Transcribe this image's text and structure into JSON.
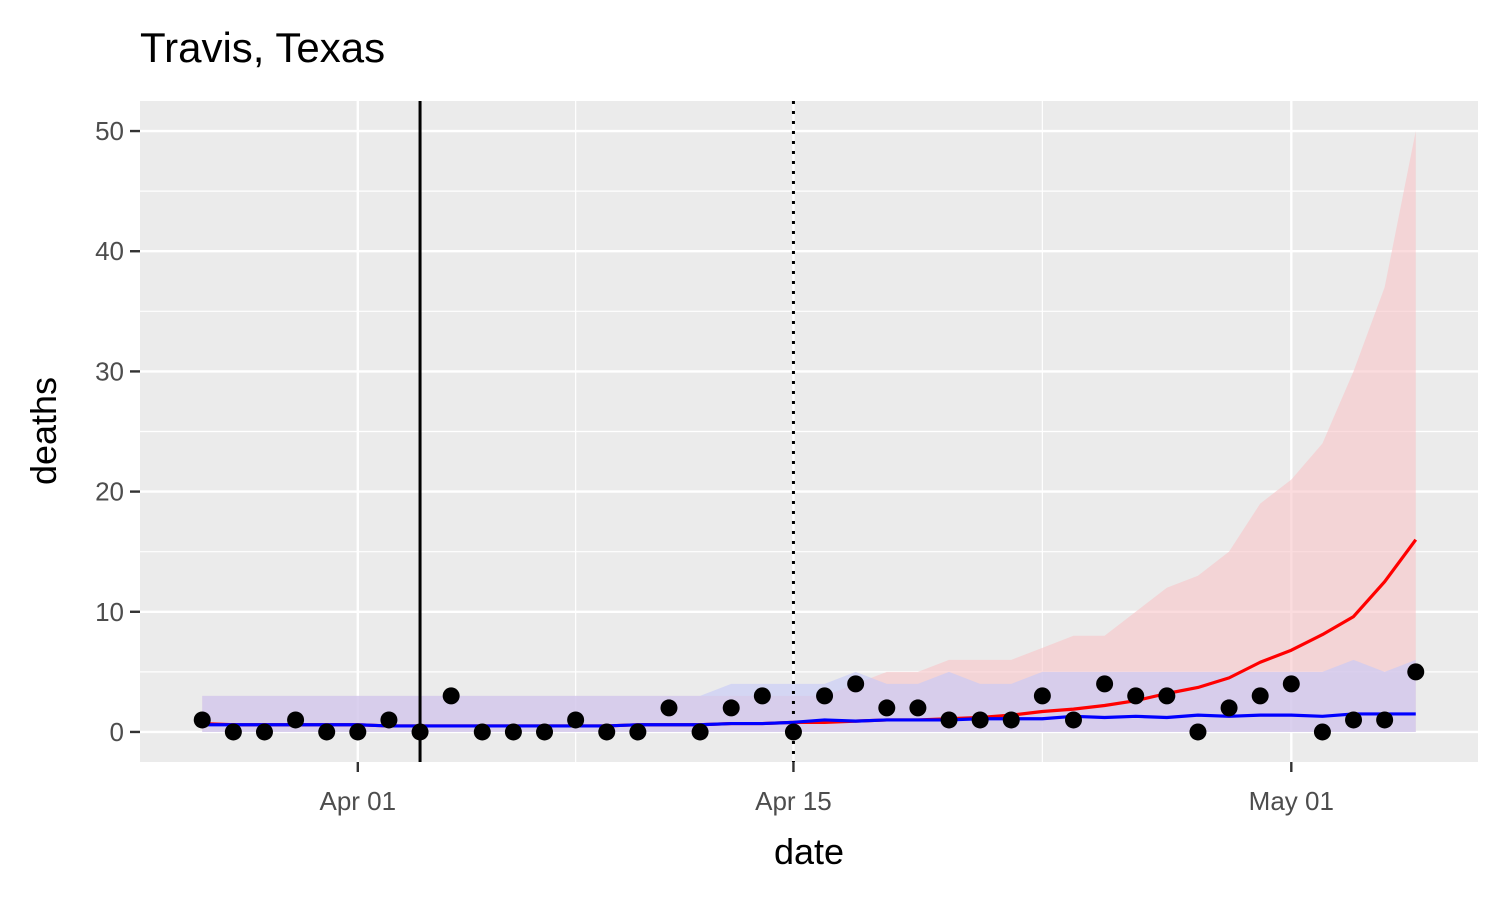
{
  "chart_data": {
    "type": "line",
    "title": "Travis, Texas",
    "xlabel": "date",
    "ylabel": "deaths",
    "x_start": "2020-03-27",
    "xlim": [
      "2020-03-25",
      "2020-05-07"
    ],
    "ylim": [
      -2.5,
      52.5
    ],
    "y_ticks": [
      0,
      10,
      20,
      30,
      40,
      50
    ],
    "x_ticks": [
      {
        "date": "2020-04-01",
        "label": "Apr 01"
      },
      {
        "date": "2020-04-15",
        "label": "Apr 15"
      },
      {
        "date": "2020-05-01",
        "label": "May 01"
      }
    ],
    "x_minor_ticks": [
      "2020-04-08",
      "2020-04-23"
    ],
    "grid": true,
    "vlines": [
      {
        "date": "2020-04-03",
        "style": "solid"
      },
      {
        "date": "2020-04-15",
        "style": "dotted"
      }
    ],
    "observed": [
      1,
      0,
      0,
      1,
      0,
      0,
      1,
      0,
      3,
      0,
      0,
      0,
      1,
      0,
      0,
      2,
      0,
      2,
      3,
      0,
      3,
      4,
      2,
      2,
      1,
      1,
      1,
      3,
      1,
      4,
      3,
      3,
      0,
      2,
      3,
      4,
      0,
      1,
      1,
      5
    ],
    "series": [
      {
        "color": "#ff0000",
        "band_color": "#f8c4c8",
        "values": [
          0.7,
          0.6,
          0.6,
          0.6,
          0.6,
          0.6,
          0.5,
          0.5,
          0.5,
          0.5,
          0.5,
          0.5,
          0.5,
          0.5,
          0.6,
          0.6,
          0.6,
          0.7,
          0.7,
          0.8,
          0.8,
          0.9,
          1.0,
          1.0,
          1.1,
          1.2,
          1.4,
          1.7,
          1.9,
          2.2,
          2.6,
          3.2,
          3.7,
          4.5,
          5.8,
          6.8,
          8.1,
          9.6,
          12.5,
          16.0
        ],
        "lower": [
          0,
          0,
          0,
          0,
          0,
          0,
          0,
          0,
          0,
          0,
          0,
          0,
          0,
          0,
          0,
          0,
          0,
          0,
          0,
          0,
          0,
          0,
          0,
          0,
          0,
          0,
          0,
          0,
          0,
          0,
          0,
          0,
          0,
          0,
          0,
          0,
          0,
          0,
          0,
          0
        ],
        "upper": [
          3,
          3,
          3,
          3,
          3,
          3,
          3,
          3,
          3,
          3,
          3,
          3,
          3,
          3,
          3,
          3,
          3,
          3,
          3,
          3,
          3,
          4,
          5,
          5,
          6,
          6,
          6,
          7,
          8,
          8,
          10,
          12,
          13,
          15,
          19,
          21,
          24,
          30,
          37,
          50
        ]
      },
      {
        "color": "#0000ff",
        "band_color": "#c4c8f8",
        "values": [
          0.6,
          0.6,
          0.6,
          0.6,
          0.6,
          0.6,
          0.5,
          0.5,
          0.5,
          0.5,
          0.5,
          0.5,
          0.5,
          0.5,
          0.6,
          0.6,
          0.6,
          0.7,
          0.7,
          0.8,
          1.0,
          0.9,
          1.0,
          1.0,
          1.0,
          1.1,
          1.1,
          1.1,
          1.3,
          1.2,
          1.3,
          1.2,
          1.4,
          1.3,
          1.4,
          1.4,
          1.3,
          1.5,
          1.5,
          1.5
        ],
        "lower": [
          0,
          0,
          0,
          0,
          0,
          0,
          0,
          0,
          0,
          0,
          0,
          0,
          0,
          0,
          0,
          0,
          0,
          0,
          0,
          0,
          0,
          0,
          0,
          0,
          0,
          0,
          0,
          0,
          0,
          0,
          0,
          0,
          0,
          0,
          0,
          0,
          0,
          0,
          0,
          0
        ],
        "upper": [
          3,
          3,
          3,
          3,
          3,
          3,
          3,
          3,
          3,
          3,
          3,
          3,
          3,
          3,
          3,
          3,
          3,
          4,
          4,
          4,
          4,
          5,
          4,
          4,
          5,
          4,
          4,
          5,
          5,
          5,
          5,
          5,
          5,
          5,
          5,
          5,
          5,
          6,
          5,
          6
        ]
      }
    ],
    "point_color": "#000000",
    "panel_color": "#ebebeb",
    "grid_color": "#ffffff"
  }
}
